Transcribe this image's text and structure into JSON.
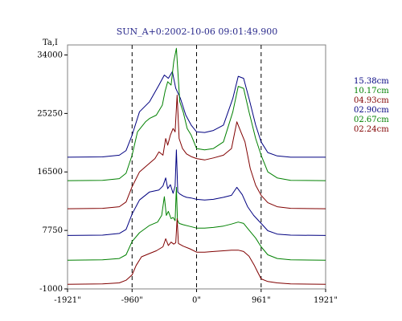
{
  "chart_data": {
    "type": "line",
    "title": "SUN_A+0:2002-10-06 09:01:49.900",
    "ylabel": "Ta,I",
    "xlabel": "",
    "x_tick_labels": [
      "-1921\"",
      "-960\"",
      "0\"",
      "961\"",
      "1921\""
    ],
    "x_ticks": [
      -1921,
      -960,
      0,
      961,
      1921
    ],
    "xlim": [
      -1921,
      1921
    ],
    "y_tick_labels": [
      "34000",
      "25250",
      "16500",
      "7750",
      "-1000"
    ],
    "y_ticks": [
      34000,
      25250,
      16500,
      7750,
      -1000
    ],
    "ylim": [
      -1000,
      35500
    ],
    "vlines": [
      -960,
      0,
      961
    ],
    "grid": false,
    "legend_position": "right",
    "series": [
      {
        "name": "15.38cm",
        "color": "#000080",
        "x": [
          -1921,
          -1400,
          -1150,
          -1050,
          -960,
          -850,
          -700,
          -560,
          -480,
          -420,
          -360,
          -310,
          -240,
          -160,
          -80,
          0,
          120,
          250,
          400,
          540,
          620,
          700,
          780,
          880,
          961,
          1060,
          1200,
          1400,
          1921
        ],
        "y": [
          18700,
          18750,
          19000,
          19700,
          22000,
          25500,
          27000,
          29500,
          31000,
          30500,
          31500,
          29000,
          27500,
          25000,
          23500,
          22500,
          22400,
          22700,
          23500,
          27500,
          30800,
          30500,
          27500,
          23500,
          21000,
          19400,
          18900,
          18700,
          18700
        ]
      },
      {
        "name": "10.17cm",
        "color": "#008000",
        "x": [
          -1921,
          -1400,
          -1150,
          -1050,
          -960,
          -880,
          -760,
          -700,
          -600,
          -510,
          -470,
          -430,
          -380,
          -340,
          -300,
          -250,
          -200,
          -140,
          -80,
          0,
          120,
          250,
          400,
          540,
          620,
          700,
          780,
          880,
          961,
          1060,
          1200,
          1400,
          1921
        ],
        "y": [
          15200,
          15250,
          15500,
          16300,
          19000,
          22500,
          24000,
          24500,
          25000,
          26500,
          28500,
          30000,
          29500,
          33000,
          35000,
          27000,
          25500,
          23000,
          22000,
          20000,
          19800,
          20000,
          21000,
          25500,
          29300,
          29000,
          25500,
          21500,
          19000,
          16500,
          15600,
          15250,
          15200
        ]
      },
      {
        "name": "04.93cm",
        "color": "#800000",
        "x": [
          -1921,
          -1400,
          -1150,
          -1050,
          -960,
          -850,
          -700,
          -620,
          -560,
          -500,
          -460,
          -430,
          -390,
          -350,
          -320,
          -290,
          -260,
          -210,
          -150,
          -80,
          0,
          120,
          250,
          400,
          520,
          600,
          660,
          720,
          800,
          880,
          961,
          1060,
          1200,
          1400,
          1921
        ],
        "y": [
          11000,
          11050,
          11300,
          12000,
          14300,
          16500,
          17800,
          18500,
          19500,
          19000,
          21500,
          20500,
          22000,
          23000,
          22500,
          28000,
          21500,
          20000,
          19200,
          18800,
          18500,
          18300,
          18600,
          19000,
          20000,
          24000,
          22500,
          21000,
          17000,
          14500,
          13000,
          11900,
          11300,
          11050,
          11000
        ]
      },
      {
        "name": "02.90cm",
        "color": "#000080",
        "x": [
          -1921,
          -1400,
          -1150,
          -1050,
          -960,
          -850,
          -700,
          -560,
          -500,
          -460,
          -430,
          -390,
          -350,
          -320,
          -300,
          -280,
          -250,
          -200,
          -150,
          -80,
          0,
          120,
          250,
          400,
          520,
          600,
          680,
          760,
          850,
          961,
          1060,
          1200,
          1400,
          1921
        ],
        "y": [
          7000,
          7050,
          7300,
          7900,
          10200,
          12300,
          13500,
          13800,
          14400,
          15600,
          14000,
          14600,
          13300,
          14400,
          19800,
          13500,
          13200,
          12900,
          12700,
          12600,
          12400,
          12300,
          12400,
          12700,
          13000,
          14200,
          13100,
          11300,
          10000,
          8800,
          7700,
          7200,
          7050,
          7000
        ]
      },
      {
        "name": "02.67cm",
        "color": "#008000",
        "x": [
          -1921,
          -1400,
          -1150,
          -1050,
          -960,
          -850,
          -700,
          -580,
          -520,
          -480,
          -450,
          -420,
          -380,
          -350,
          -320,
          -300,
          -285,
          -260,
          -200,
          -120,
          0,
          120,
          250,
          400,
          520,
          620,
          700,
          780,
          880,
          961,
          1060,
          1200,
          1400,
          1921
        ],
        "y": [
          3300,
          3350,
          3550,
          4100,
          6100,
          7400,
          8500,
          9000,
          10000,
          12800,
          10000,
          10600,
          9500,
          9700,
          9200,
          14200,
          9300,
          8800,
          8600,
          8400,
          8100,
          8100,
          8200,
          8400,
          8700,
          9000,
          8800,
          7800,
          6600,
          5300,
          4100,
          3550,
          3350,
          3300
        ]
      },
      {
        "name": "02.24cm",
        "color": "#800000",
        "x": [
          -1921,
          -1400,
          -1150,
          -1050,
          -960,
          -900,
          -820,
          -700,
          -600,
          -500,
          -460,
          -420,
          -380,
          -340,
          -310,
          -290,
          -270,
          -200,
          -100,
          0,
          120,
          250,
          400,
          520,
          620,
          700,
          780,
          861,
          900,
          961,
          1060,
          1200,
          1400,
          1921
        ],
        "y": [
          -300,
          -250,
          -100,
          300,
          1100,
          2500,
          3800,
          4300,
          4700,
          5300,
          6500,
          5500,
          6000,
          5700,
          5900,
          9500,
          5800,
          5400,
          5000,
          4500,
          4500,
          4600,
          4700,
          4800,
          4800,
          4600,
          3900,
          2500,
          1700,
          500,
          100,
          -100,
          -250,
          -300
        ]
      }
    ]
  }
}
